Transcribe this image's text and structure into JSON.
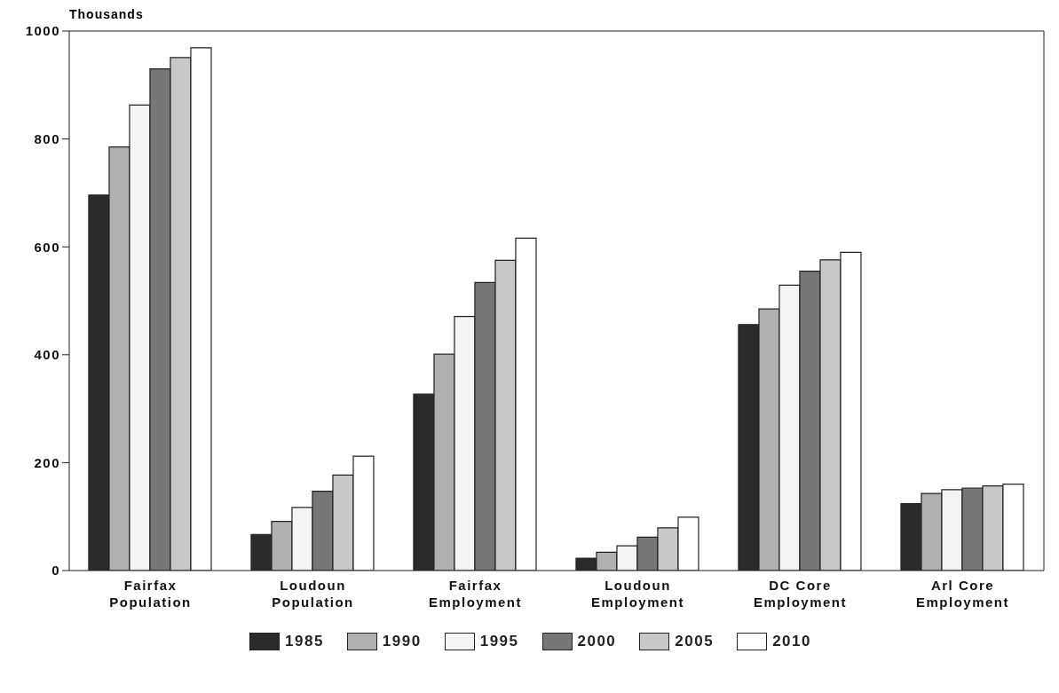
{
  "chart_data": {
    "type": "bar",
    "ylabel": "Thousands",
    "categories": [
      "Fairfax Population",
      "Loudoun Population",
      "Fairfax Employment",
      "Loudoun Employment",
      "DC Core Employment",
      "Arl Core Employment"
    ],
    "series": [
      {
        "name": "1985",
        "color": "#2b2b2b",
        "values": [
          696,
          67,
          327,
          23,
          456,
          124
        ]
      },
      {
        "name": "1990",
        "color": "#b0b0b0",
        "values": [
          785,
          91,
          401,
          34,
          485,
          143
        ]
      },
      {
        "name": "1995",
        "color": "#f4f4f4",
        "values": [
          863,
          117,
          471,
          46,
          529,
          150
        ]
      },
      {
        "name": "2000",
        "color": "#777777",
        "values": [
          930,
          147,
          534,
          62,
          555,
          153
        ]
      },
      {
        "name": "2005",
        "color": "#c8c8c8",
        "values": [
          951,
          177,
          575,
          79,
          576,
          157
        ]
      },
      {
        "name": "2010",
        "color": "#ffffff",
        "values": [
          969,
          212,
          616,
          99,
          590,
          160
        ]
      }
    ],
    "ylim": [
      0,
      1000
    ],
    "yticks": [
      0,
      200,
      400,
      600,
      800,
      1000
    ],
    "grid": false,
    "legend": "bottom"
  }
}
